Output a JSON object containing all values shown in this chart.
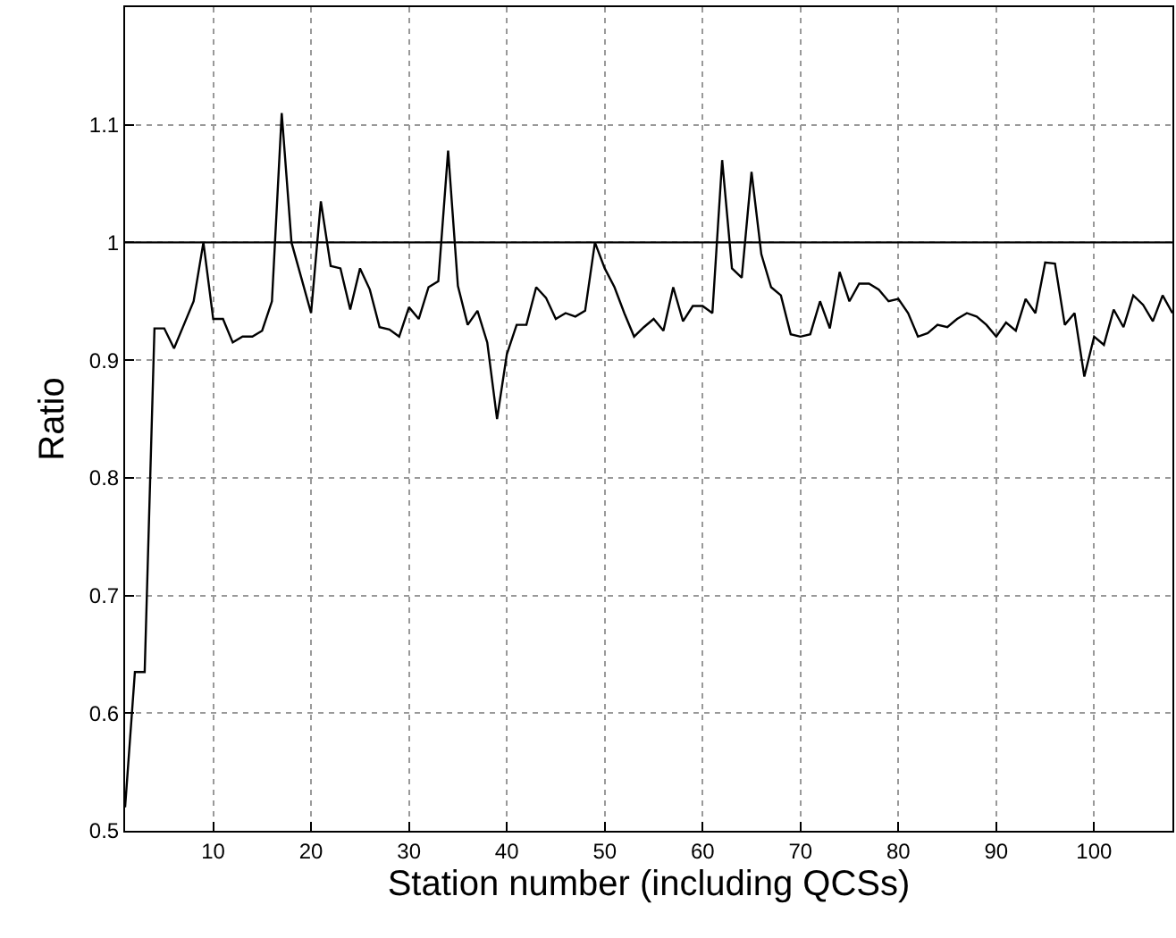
{
  "chart_data": {
    "type": "line",
    "xlabel": "Station number (including QCSs)",
    "ylabel": "Ratio",
    "x": [
      1,
      2,
      3,
      4,
      5,
      6,
      7,
      8,
      9,
      10,
      11,
      12,
      13,
      14,
      15,
      16,
      17,
      18,
      19,
      20,
      21,
      22,
      23,
      24,
      25,
      26,
      27,
      28,
      29,
      30,
      31,
      32,
      33,
      34,
      35,
      36,
      37,
      38,
      39,
      40,
      41,
      42,
      43,
      44,
      45,
      46,
      47,
      48,
      49,
      50,
      51,
      52,
      53,
      54,
      55,
      56,
      57,
      58,
      59,
      60,
      61,
      62,
      63,
      64,
      65,
      66,
      67,
      68,
      69,
      70,
      71,
      72,
      73,
      74,
      75,
      76,
      77,
      78,
      79,
      80,
      81,
      82,
      83,
      84,
      85,
      86,
      87,
      88,
      89,
      90,
      91,
      92,
      93,
      94,
      95,
      96,
      97,
      98,
      99,
      100,
      101,
      102,
      103,
      104,
      105,
      106,
      107,
      108
    ],
    "series": [
      {
        "color": "#000000",
        "values": [
          0.52,
          0.635,
          0.635,
          0.927,
          0.927,
          0.91,
          0.93,
          0.95,
          1.0,
          0.935,
          0.935,
          0.915,
          0.92,
          0.92,
          0.925,
          0.95,
          1.11,
          1.0,
          0.97,
          0.94,
          1.035,
          0.98,
          0.978,
          0.943,
          0.978,
          0.96,
          0.928,
          0.926,
          0.92,
          0.945,
          0.935,
          0.962,
          0.967,
          1.078,
          0.963,
          0.93,
          0.942,
          0.915,
          0.85,
          0.905,
          0.93,
          0.93,
          0.962,
          0.953,
          0.935,
          0.94,
          0.937,
          0.942,
          1.0,
          0.978,
          0.962,
          0.94,
          0.92,
          0.928,
          0.935,
          0.925,
          0.962,
          0.933,
          0.946,
          0.946,
          0.94,
          1.07,
          0.978,
          0.97,
          1.06,
          0.99,
          0.962,
          0.955,
          0.922,
          0.92,
          0.922,
          0.95,
          0.927,
          0.975,
          0.95,
          0.965,
          0.965,
          0.96,
          0.95,
          0.952,
          0.94,
          0.92,
          0.923,
          0.93,
          0.928,
          0.935,
          0.94,
          0.937,
          0.93,
          0.92,
          0.932,
          0.925,
          0.952,
          0.94,
          0.983,
          0.982,
          0.93,
          0.94,
          0.886,
          0.92,
          0.913,
          0.943,
          0.928,
          0.955,
          0.947,
          0.933,
          0.955,
          0.94
        ]
      }
    ],
    "xlim": [
      1,
      108
    ],
    "xticks": [
      10,
      20,
      30,
      40,
      50,
      60,
      70,
      80,
      90,
      100
    ],
    "ylim": [
      0.5,
      1.2
    ],
    "yticks": [
      0.5,
      0.6,
      0.7,
      0.8,
      0.9,
      1,
      1.1
    ],
    "ref_lines": [
      {
        "axis": "y",
        "value": 1,
        "color": "#000000",
        "line_style": "solid"
      }
    ],
    "grid": true,
    "marker": "none",
    "line_style": "solid"
  }
}
